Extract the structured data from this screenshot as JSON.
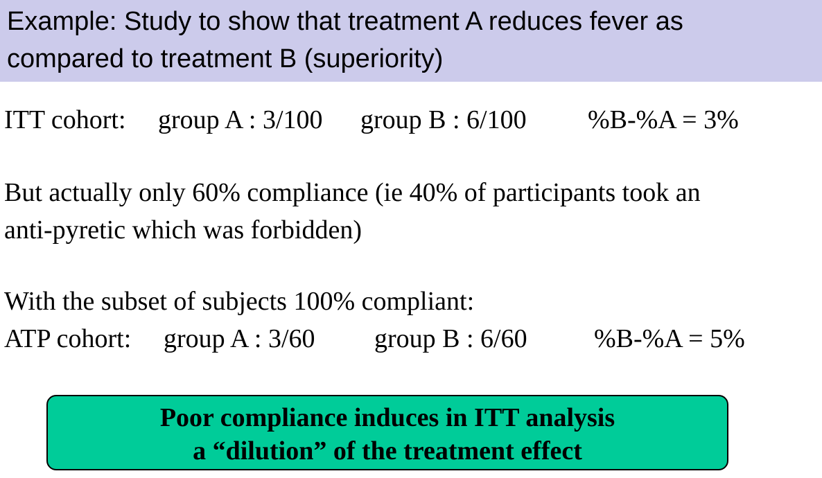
{
  "header": {
    "line1": "Example: Study to show that treatment A reduces fever as",
    "line2": "compared to treatment B (superiority)",
    "background_color": "#cccbeb"
  },
  "itt": {
    "label": "ITT cohort:",
    "group_a": "group A : 3/100",
    "group_b": "group B : 6/100",
    "difference": "%B-%A = 3%"
  },
  "compliance": {
    "line1": "But actually only 60% compliance (ie 40% of participants took an",
    "line2": "anti-pyretic which was forbidden)"
  },
  "atp": {
    "intro": "With the subset of subjects 100% compliant:",
    "label": "ATP cohort:",
    "group_a": "group A : 3/60",
    "group_b": "group B : 6/60",
    "difference": "%B-%A = 5%"
  },
  "conclusion": {
    "line1": "Poor compliance induces in ITT analysis",
    "line2": "a “dilution” of the treatment effect",
    "background_color": "#00cc99"
  }
}
